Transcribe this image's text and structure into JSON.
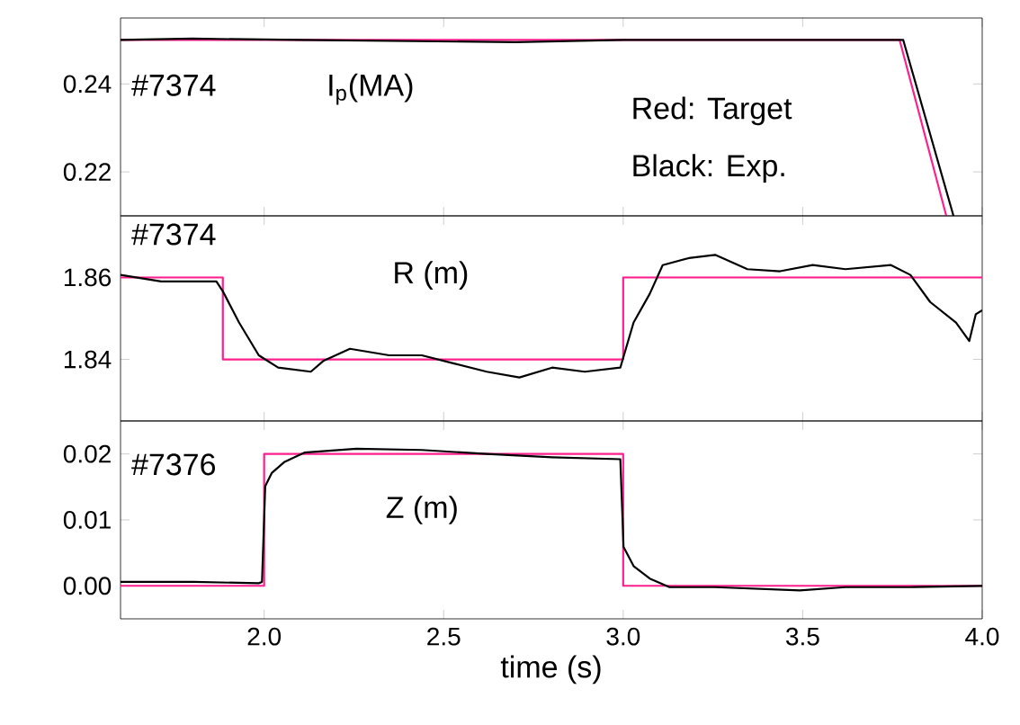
{
  "chart_data": [
    {
      "type": "line",
      "xlim": [
        1.6,
        4.0
      ],
      "ylim": [
        0.21,
        0.255
      ],
      "xticks": [
        2,
        2.5,
        3,
        3.5,
        4
      ],
      "yticks": [
        0.22,
        0.24
      ],
      "tick_labels": "y",
      "annotations": [
        "#7374",
        "I$_{p}$(MA)",
        "Red:  Target",
        "Black: Exp."
      ],
      "series": [
        {
          "color": "#ff1f8e",
          "x": [
            1.6,
            3.77,
            3.9
          ],
          "values": [
            0.25,
            0.25,
            0.21
          ]
        },
        {
          "color": "#000000",
          "x": [
            1.6,
            1.8,
            2.1,
            2.7,
            3.0,
            3.5,
            3.78,
            3.92
          ],
          "values": [
            0.25,
            0.2503,
            0.25,
            0.2495,
            0.25,
            0.25,
            0.25,
            0.21
          ]
        }
      ]
    },
    {
      "type": "line",
      "xlim": [
        1.6,
        4.0
      ],
      "ylim": [
        1.825,
        1.875
      ],
      "xticks": [
        2,
        2.5,
        3,
        3.5,
        4
      ],
      "yticks": [
        1.84,
        1.86
      ],
      "tick_labels": "y",
      "annotations": [
        "#7374",
        "R (m)"
      ],
      "series": [
        {
          "color": "#ff1f8e",
          "x": [
            1.6,
            1.885,
            1.885,
            3.0,
            3.0,
            4.0
          ],
          "values": [
            1.86,
            1.86,
            1.84,
            1.84,
            1.86,
            1.86
          ]
        },
        {
          "color": "#000000",
          "x": [
            1.6,
            1.713,
            1.867,
            1.885,
            1.93,
            1.985,
            2.039,
            2.13,
            2.166,
            2.239,
            2.348,
            2.439,
            2.529,
            2.62,
            2.711,
            2.802,
            2.893,
            2.992,
            3.029,
            3.074,
            3.11,
            3.183,
            3.256,
            3.346,
            3.437,
            3.528,
            3.619,
            3.746,
            3.8,
            3.855,
            3.927,
            3.964,
            3.982,
            4.0
          ],
          "values": [
            1.8606,
            1.859,
            1.859,
            1.8566,
            1.849,
            1.841,
            1.838,
            1.837,
            1.8397,
            1.8426,
            1.841,
            1.841,
            1.839,
            1.837,
            1.8356,
            1.838,
            1.837,
            1.838,
            1.849,
            1.856,
            1.863,
            1.8647,
            1.8655,
            1.862,
            1.8615,
            1.863,
            1.862,
            1.863,
            1.8606,
            1.854,
            1.849,
            1.8445,
            1.851,
            1.852
          ]
        }
      ]
    },
    {
      "type": "line",
      "xlim": [
        1.6,
        4.0
      ],
      "ylim": [
        -0.005,
        0.025
      ],
      "xticks": [
        {
          "value": 2,
          "label": "2.0"
        },
        {
          "value": 2.5,
          "label": "2.5"
        },
        {
          "value": 3,
          "label": "3.0"
        },
        {
          "value": 3.5,
          "label": "3.5"
        },
        {
          "value": 4,
          "label": "4.0"
        }
      ],
      "yticks": [
        {
          "value": 0,
          "label": "0.00"
        },
        0.01,
        0.02
      ],
      "xlabel": "time (s)",
      "annotations": [
        "#7376",
        "Z (m)"
      ],
      "series": [
        {
          "color": "#ff1f8e",
          "x": [
            1.6,
            2.0,
            2.0,
            3.0,
            3.0,
            4.0
          ],
          "values": [
            0,
            0,
            0.02,
            0.02,
            0,
            0
          ]
        },
        {
          "color": "#000000",
          "x": [
            1.6,
            1.803,
            1.985,
            1.994,
            2.003,
            2.021,
            2.057,
            2.112,
            2.257,
            2.439,
            2.62,
            2.802,
            2.992,
            3.001,
            3.029,
            3.074,
            3.129,
            3.256,
            3.492,
            3.619,
            3.8,
            4.0
          ],
          "values": [
            0.0006,
            0.0006,
            0.0004,
            0.0006,
            0.0151,
            0.0171,
            0.0188,
            0.0202,
            0.0208,
            0.0206,
            0.02,
            0.0195,
            0.0192,
            0.0059,
            0.003,
            0.0011,
            -0.0002,
            -0.0002,
            -0.0007,
            -0.0002,
            -0.0002,
            0
          ]
        }
      ]
    }
  ]
}
